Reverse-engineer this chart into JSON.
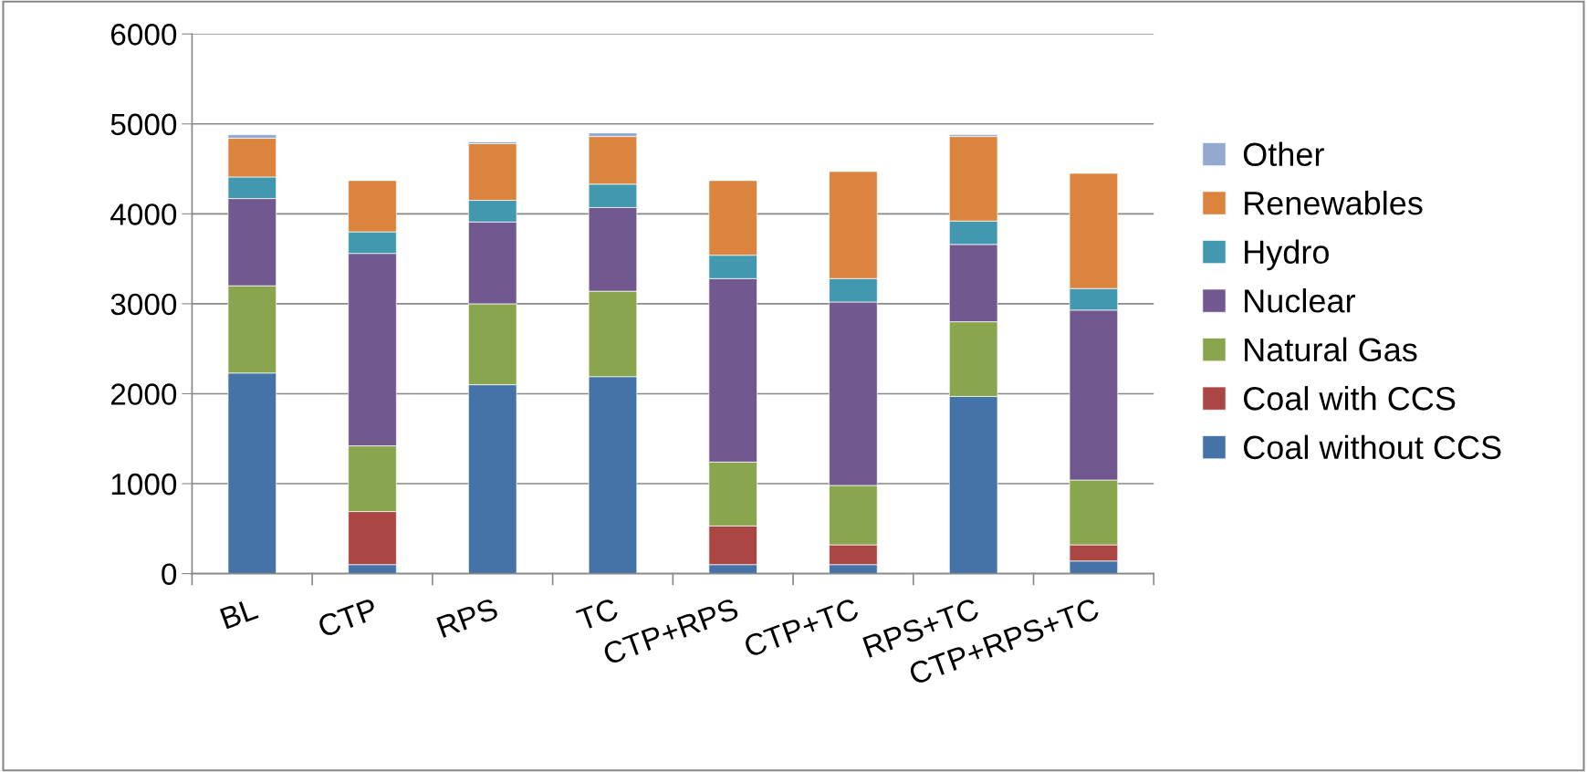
{
  "chart_data": {
    "type": "bar",
    "stacked": true,
    "categories": [
      "BL",
      "CTP",
      "RPS",
      "TC",
      "CTP+RPS",
      "CTP+TC",
      "RPS+TC",
      "CTP+RPS+TC"
    ],
    "series": [
      {
        "name": "Coal without CCS",
        "color": "#4572a7",
        "values": [
          2230,
          100,
          2100,
          2190,
          100,
          100,
          1970,
          140
        ]
      },
      {
        "name": "Coal with CCS",
        "color": "#aa4643",
        "values": [
          null,
          590,
          null,
          null,
          430,
          220,
          null,
          180
        ]
      },
      {
        "name": "Natural Gas",
        "color": "#89a54e",
        "values": [
          970,
          730,
          900,
          950,
          710,
          660,
          830,
          720
        ]
      },
      {
        "name": "Nuclear",
        "color": "#71588f",
        "values": [
          970,
          2140,
          910,
          930,
          2040,
          2040,
          860,
          1890
        ]
      },
      {
        "name": "Hydro",
        "color": "#4198af",
        "values": [
          240,
          240,
          240,
          260,
          260,
          260,
          260,
          240
        ]
      },
      {
        "name": "Renewables",
        "color": "#db843d",
        "values": [
          430,
          570,
          630,
          530,
          830,
          1190,
          940,
          1280
        ]
      },
      {
        "name": "Other",
        "color": "#93a9cf",
        "values": [
          40,
          null,
          20,
          40,
          null,
          null,
          20,
          null
        ]
      }
    ],
    "ylim": [
      0,
      6000
    ],
    "yticks": [
      0,
      1000,
      2000,
      3000,
      4000,
      5000,
      6000
    ],
    "grid": "y",
    "legend": "right"
  }
}
